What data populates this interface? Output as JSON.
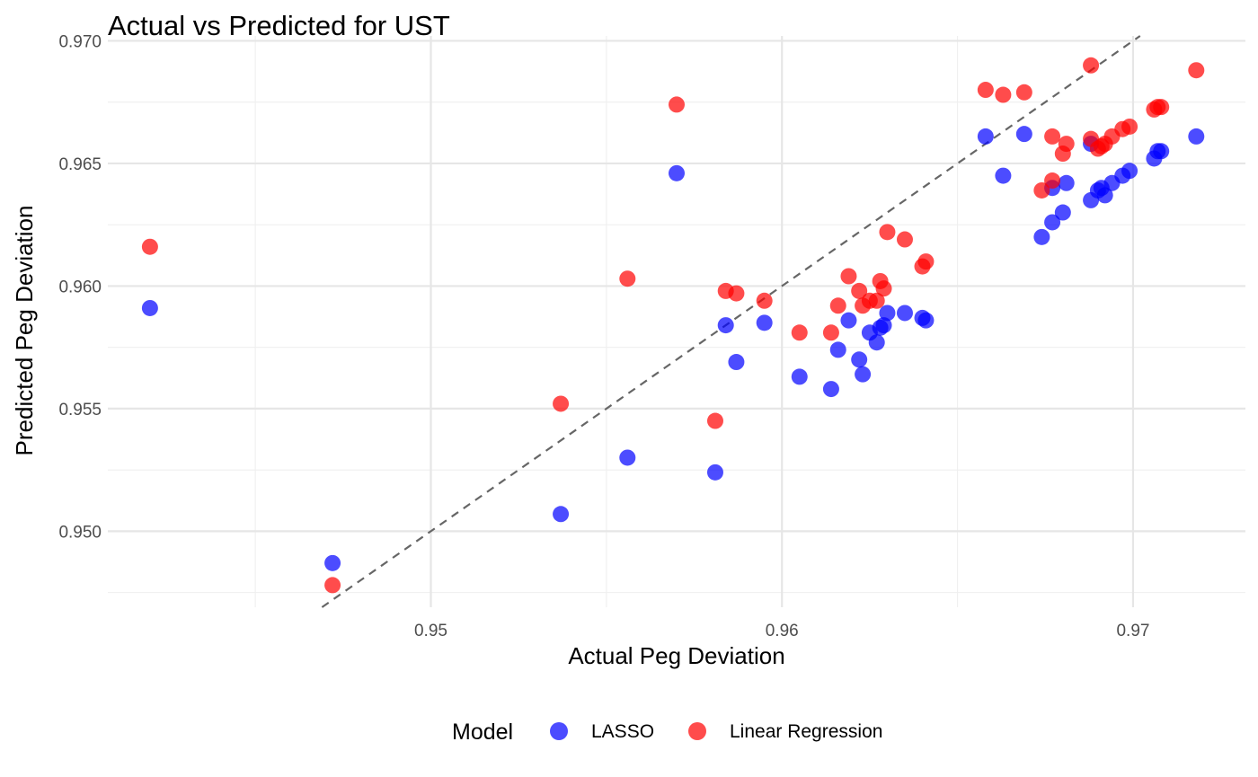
{
  "chart_data": {
    "type": "scatter",
    "title": "Actual vs Predicted for UST",
    "xlabel": "Actual Peg Deviation",
    "ylabel": "Predicted Peg Deviation",
    "xlim": [
      0.9408,
      0.9732
    ],
    "ylim": [
      0.9469,
      0.9702
    ],
    "x_ticks": [
      0.95,
      0.96,
      0.97
    ],
    "x_tick_labels": [
      "0.95",
      "0.96",
      "0.97"
    ],
    "y_ticks": [
      0.95,
      0.955,
      0.96,
      0.965,
      0.97
    ],
    "y_tick_labels": [
      "0.950",
      "0.955",
      "0.960",
      "0.965",
      "0.970"
    ],
    "grid": true,
    "reference_line": "y = x (dashed)",
    "legend": {
      "title": "Model",
      "position": "bottom",
      "entries": [
        "LASSO",
        "Linear Regression"
      ]
    },
    "series": [
      {
        "name": "LASSO",
        "color": "#0000FF",
        "points": [
          [
            0.942,
            0.9591
          ],
          [
            0.9472,
            0.9487
          ],
          [
            0.9537,
            0.9507
          ],
          [
            0.9556,
            0.953
          ],
          [
            0.957,
            0.9646
          ],
          [
            0.9581,
            0.9524
          ],
          [
            0.9584,
            0.9584
          ],
          [
            0.9587,
            0.9569
          ],
          [
            0.9595,
            0.9585
          ],
          [
            0.9605,
            0.9563
          ],
          [
            0.9614,
            0.9558
          ],
          [
            0.9616,
            0.9574
          ],
          [
            0.9619,
            0.9586
          ],
          [
            0.9622,
            0.957
          ],
          [
            0.9623,
            0.9564
          ],
          [
            0.9625,
            0.9581
          ],
          [
            0.9627,
            0.9577
          ],
          [
            0.9628,
            0.9583
          ],
          [
            0.9629,
            0.9584
          ],
          [
            0.963,
            0.9589
          ],
          [
            0.9635,
            0.9589
          ],
          [
            0.964,
            0.9587
          ],
          [
            0.9641,
            0.9586
          ],
          [
            0.9658,
            0.9661
          ],
          [
            0.9663,
            0.9645
          ],
          [
            0.9669,
            0.9662
          ],
          [
            0.9674,
            0.962
          ],
          [
            0.9677,
            0.9626
          ],
          [
            0.9677,
            0.964
          ],
          [
            0.968,
            0.963
          ],
          [
            0.9681,
            0.9642
          ],
          [
            0.9688,
            0.9658
          ],
          [
            0.9688,
            0.9635
          ],
          [
            0.969,
            0.9639
          ],
          [
            0.9691,
            0.964
          ],
          [
            0.9692,
            0.9637
          ],
          [
            0.9694,
            0.9642
          ],
          [
            0.9697,
            0.9645
          ],
          [
            0.9699,
            0.9647
          ],
          [
            0.9706,
            0.9652
          ],
          [
            0.9707,
            0.9655
          ],
          [
            0.9708,
            0.9655
          ],
          [
            0.9718,
            0.9661
          ]
        ]
      },
      {
        "name": "Linear Regression",
        "color": "#FF0000",
        "points": [
          [
            0.942,
            0.9616
          ],
          [
            0.9472,
            0.9478
          ],
          [
            0.9537,
            0.9552
          ],
          [
            0.9556,
            0.9603
          ],
          [
            0.957,
            0.9674
          ],
          [
            0.9581,
            0.9545
          ],
          [
            0.9584,
            0.9598
          ],
          [
            0.9587,
            0.9597
          ],
          [
            0.9595,
            0.9594
          ],
          [
            0.9605,
            0.9581
          ],
          [
            0.9614,
            0.9581
          ],
          [
            0.9616,
            0.9592
          ],
          [
            0.9619,
            0.9604
          ],
          [
            0.9622,
            0.9598
          ],
          [
            0.9623,
            0.9592
          ],
          [
            0.9625,
            0.9594
          ],
          [
            0.9627,
            0.9594
          ],
          [
            0.9628,
            0.9602
          ],
          [
            0.9629,
            0.9599
          ],
          [
            0.963,
            0.9622
          ],
          [
            0.9635,
            0.9619
          ],
          [
            0.964,
            0.9608
          ],
          [
            0.9641,
            0.961
          ],
          [
            0.9658,
            0.968
          ],
          [
            0.9663,
            0.9678
          ],
          [
            0.9669,
            0.9679
          ],
          [
            0.9674,
            0.9639
          ],
          [
            0.9677,
            0.9643
          ],
          [
            0.9677,
            0.9661
          ],
          [
            0.968,
            0.9654
          ],
          [
            0.9681,
            0.9658
          ],
          [
            0.9688,
            0.969
          ],
          [
            0.9688,
            0.966
          ],
          [
            0.969,
            0.9656
          ],
          [
            0.9691,
            0.9657
          ],
          [
            0.9692,
            0.9658
          ],
          [
            0.9694,
            0.9661
          ],
          [
            0.9697,
            0.9664
          ],
          [
            0.9699,
            0.9665
          ],
          [
            0.9706,
            0.9672
          ],
          [
            0.9707,
            0.9673
          ],
          [
            0.9708,
            0.9673
          ],
          [
            0.9718,
            0.9688
          ]
        ]
      }
    ]
  }
}
